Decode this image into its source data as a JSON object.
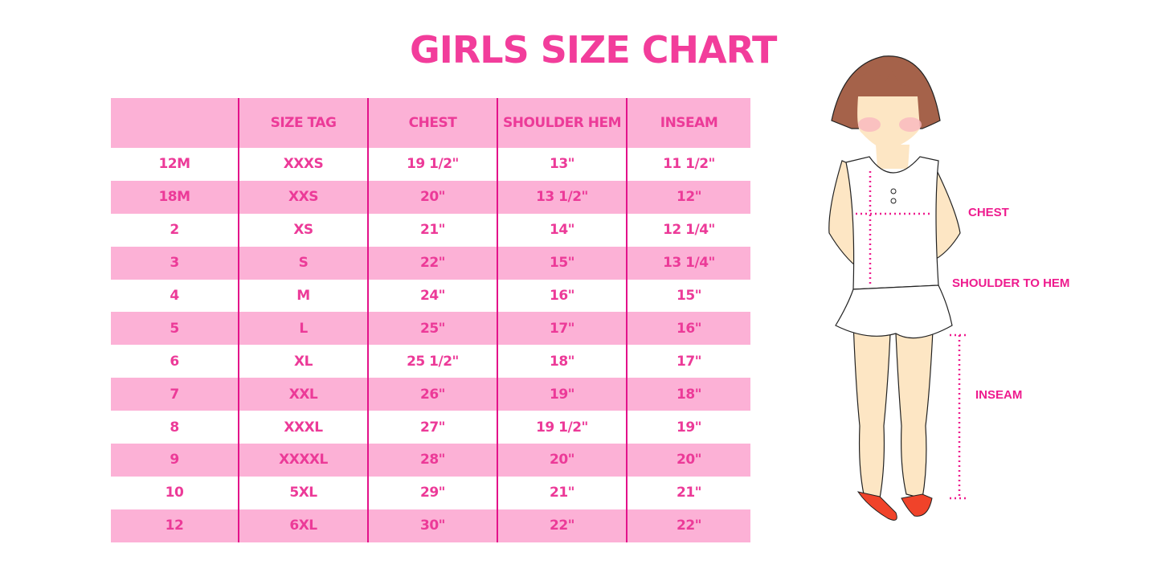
{
  "title": "GIRLS SIZE CHART",
  "table": {
    "headers": [
      "",
      "SIZE TAG",
      "CHEST",
      "SHOULDER HEM",
      "INSEAM"
    ],
    "rows": [
      [
        "12M",
        "XXXS",
        "19 1/2\"",
        "13\"",
        "11 1/2\""
      ],
      [
        "18M",
        "XXS",
        "20\"",
        "13 1/2\"",
        "12\""
      ],
      [
        "2",
        "XS",
        "21\"",
        "14\"",
        "12 1/4\""
      ],
      [
        "3",
        "S",
        "22\"",
        "15\"",
        "13 1/4\""
      ],
      [
        "4",
        "M",
        "24\"",
        "16\"",
        "15\""
      ],
      [
        "5",
        "L",
        "25\"",
        "17\"",
        "16\""
      ],
      [
        "6",
        "XL",
        "25 1/2\"",
        "18\"",
        "17\""
      ],
      [
        "7",
        "XXL",
        "26\"",
        "19\"",
        "18\""
      ],
      [
        "8",
        "XXXL",
        "27\"",
        "19 1/2\"",
        "19\""
      ],
      [
        "9",
        "XXXXL",
        "28\"",
        "20\"",
        "20\""
      ],
      [
        "10",
        "5XL",
        "29\"",
        "21\"",
        "21\""
      ],
      [
        "12",
        "6XL",
        "30\"",
        "22\"",
        "22\""
      ]
    ]
  },
  "figure": {
    "labels": {
      "chest": "CHEST",
      "shoulder_to_hem": "SHOULDER TO HEM",
      "inseam": "INSEAM"
    }
  },
  "colors": {
    "accent": "#f23d9b",
    "row_pink": "#fcb1d6",
    "divider": "#e3128a",
    "hair": "#a5624a",
    "skin": "#fde6c4",
    "shoes": "#f0432a"
  }
}
